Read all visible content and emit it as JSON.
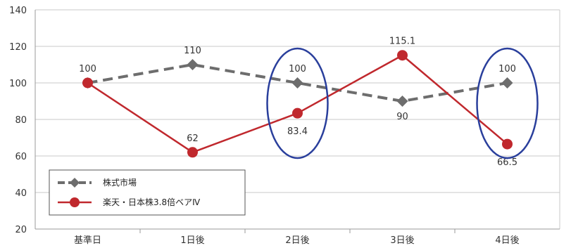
{
  "chart_data": {
    "type": "line",
    "categories": [
      "基準日",
      "1日後",
      "2日後",
      "3日後",
      "4日後"
    ],
    "ylim": [
      20,
      140
    ],
    "yticks": [
      20,
      40,
      60,
      80,
      100,
      120,
      140
    ],
    "grid": "horizontal",
    "legend_position": "bottom-left",
    "series": [
      {
        "name": "株式市場",
        "values": [
          100,
          110,
          100,
          90,
          100
        ],
        "value_labels": [
          "100",
          "110",
          "100",
          "90",
          "100"
        ],
        "color": "#6d6d6d",
        "marker": "diamond",
        "line_style": "dashed"
      },
      {
        "name": "楽天・日本株3.8倍ベアⅣ",
        "values": [
          100,
          62,
          83.4,
          115.1,
          66.5
        ],
        "value_labels": [
          "",
          "62",
          "83.4",
          "115.1",
          "66.5"
        ],
        "color": "#c0282d",
        "marker": "circle",
        "line_style": "solid"
      }
    ],
    "highlights": [
      {
        "category": "2日後",
        "color": "#2a3f9c"
      },
      {
        "category": "4日後",
        "color": "#2a3f9c"
      }
    ]
  }
}
